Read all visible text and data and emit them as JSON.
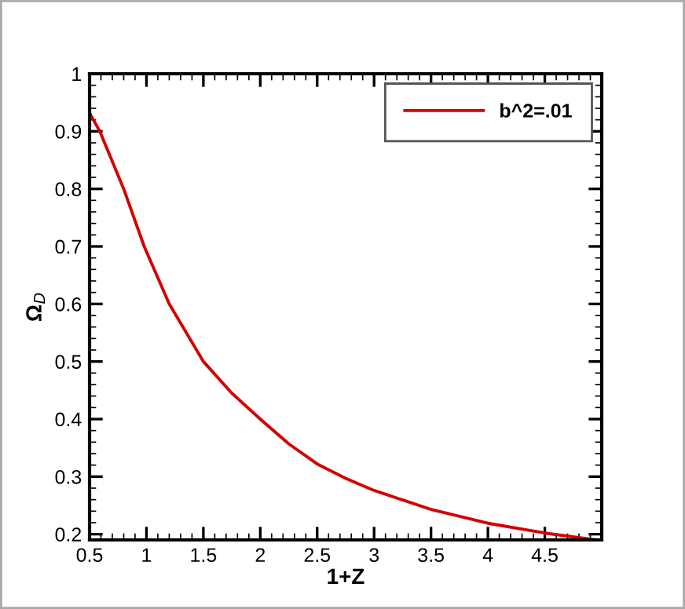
{
  "chart_data": {
    "type": "line",
    "xlabel": "1+Z",
    "ylabel": "Ω$_{D}$",
    "xlim": [
      0.5,
      5
    ],
    "ylim": [
      0.19,
      1
    ],
    "xticks": [
      0.5,
      1,
      1.5,
      2,
      2.5,
      3,
      3.5,
      4,
      4.5
    ],
    "yticks": [
      {
        "value": 0.2,
        "label": "0.2"
      },
      0.3,
      0.4,
      0.5,
      0.6,
      0.7,
      0.8,
      0.9,
      1
    ],
    "series": [
      {
        "name": "b^2=.01",
        "color": "#d40000",
        "x": [
          0.5,
          0.59,
          0.8,
          0.98,
          1.2,
          1.5,
          1.75,
          2.0,
          2.25,
          2.5,
          2.75,
          3.0,
          3.5,
          4.0,
          4.5,
          4.95
        ],
        "values": [
          0.932,
          0.9,
          0.8,
          0.7,
          0.6,
          0.5,
          0.445,
          0.4,
          0.357,
          0.322,
          0.297,
          0.276,
          0.243,
          0.219,
          0.202,
          0.19
        ]
      }
    ],
    "legend": "top right",
    "grid": false,
    "marker": "none",
    "line_style": "solid"
  }
}
